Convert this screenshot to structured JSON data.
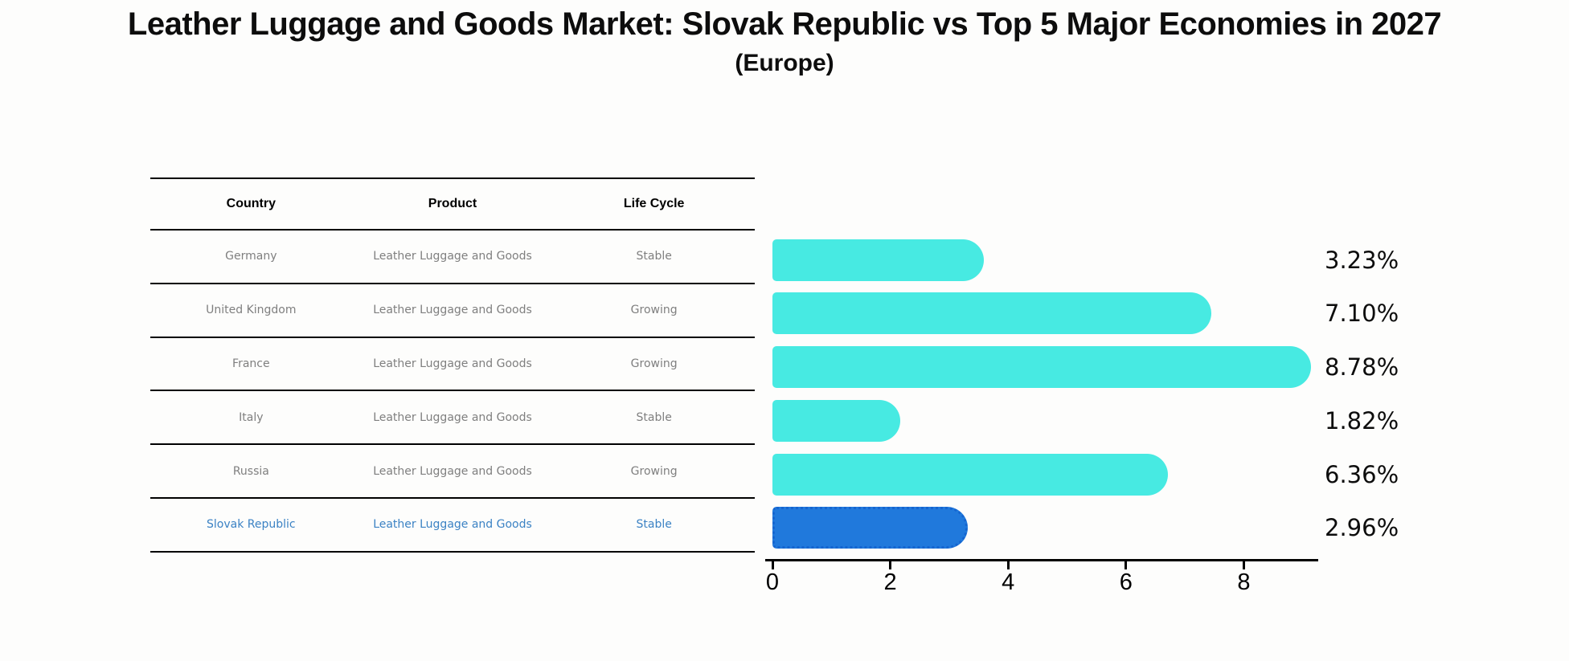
{
  "title": "Leather Luggage and Goods Market: Slovak Republic vs Top 5 Major Economies in 2027",
  "subtitle": "(Europe)",
  "table": {
    "headers": [
      "Country",
      "Product",
      "Life Cycle"
    ],
    "rows": [
      {
        "country": "Germany",
        "product": "Leather Luggage and Goods",
        "life_cycle": "Stable",
        "highlighted": false
      },
      {
        "country": "United Kingdom",
        "product": "Leather Luggage and Goods",
        "life_cycle": "Growing",
        "highlighted": false
      },
      {
        "country": "France",
        "product": "Leather Luggage and Goods",
        "life_cycle": "Growing",
        "highlighted": false
      },
      {
        "country": "Italy",
        "product": "Leather Luggage and Goods",
        "life_cycle": "Stable",
        "highlighted": false
      },
      {
        "country": "Russia",
        "product": "Leather Luggage and Goods",
        "life_cycle": "Growing",
        "highlighted": false
      },
      {
        "country": "Slovak Republic",
        "product": "Leather Luggage and Goods",
        "life_cycle": "Stable",
        "highlighted": true
      }
    ]
  },
  "chart_data": {
    "type": "bar",
    "orientation": "horizontal",
    "title": "Leather Luggage and Goods Market: Slovak Republic vs Top 5 Major Economies in 2027",
    "subtitle": "(Europe)",
    "categories": [
      "Germany",
      "United Kingdom",
      "France",
      "Italy",
      "Russia",
      "Slovak Republic"
    ],
    "values": [
      3.23,
      7.1,
      8.78,
      1.82,
      6.36,
      2.96
    ],
    "value_labels": [
      "3.23%",
      "7.10%",
      "8.78%",
      "1.82%",
      "6.36%",
      "2.96%"
    ],
    "x_ticks": [
      "0",
      "2",
      "4",
      "6",
      "8"
    ],
    "xlim": [
      0,
      9.25
    ],
    "grid": false,
    "legend": "none",
    "bar_color": "#47eae2",
    "highlight_index": 5,
    "highlight_color": "#2079dc",
    "highlight_border_color": "#1565d0",
    "highlight_text_color": "#3b82c4",
    "table_text_color": "#7f7f7f",
    "axis_color": "#000000"
  }
}
